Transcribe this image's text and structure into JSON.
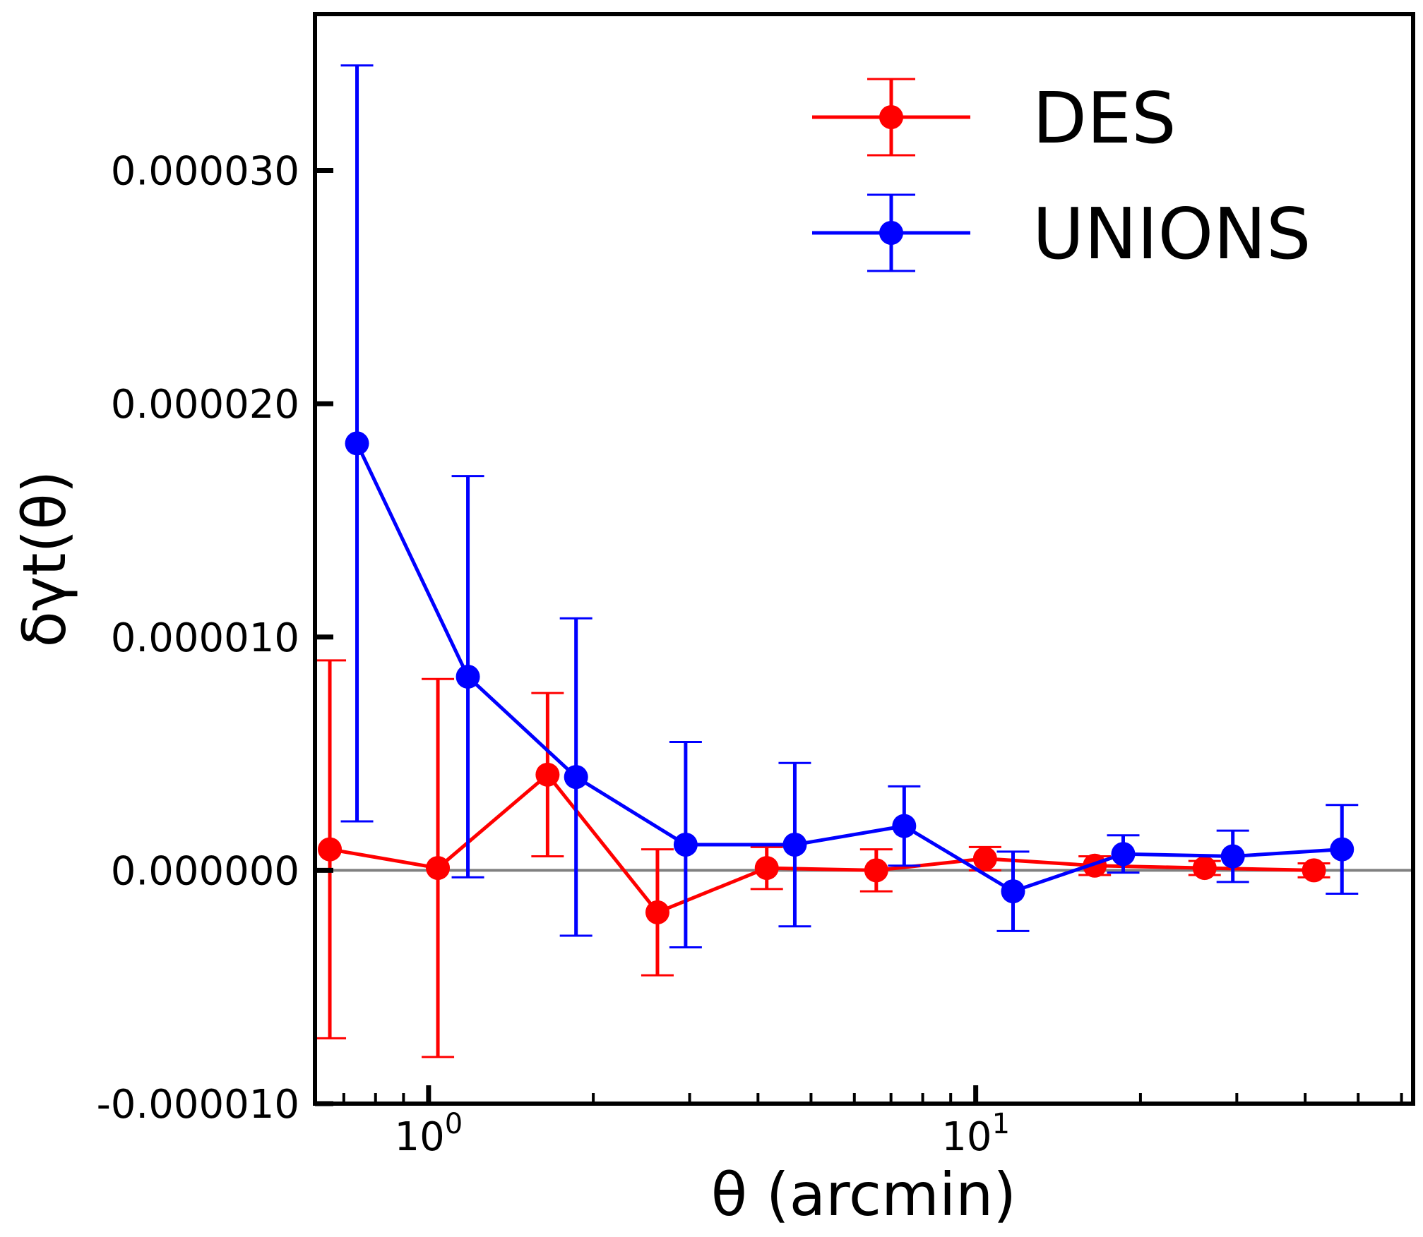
{
  "chart_data": {
    "type": "line",
    "xscale": "log",
    "xlim": [
      0.62,
      63
    ],
    "ylim": [
      -1e-05,
      3.67e-05
    ],
    "xlabel": "θ (arcmin)",
    "ylabel": "δγt(θ)",
    "title": "",
    "grid": false,
    "legend_position": "top-right",
    "y_ticks": [
      -1e-05,
      0,
      1e-05,
      2e-05,
      3e-05
    ],
    "y_tick_labels": [
      "-0.000010",
      "0.000000",
      "0.000010",
      "0.000020",
      "0.000030"
    ],
    "x_ticks": [
      1,
      10
    ],
    "x_tick_labels": [
      {
        "base": "10",
        "exp": "0"
      },
      {
        "base": "10",
        "exp": "1"
      }
    ],
    "reference_line": {
      "y": 0,
      "color": "#808080"
    },
    "series": [
      {
        "name": "DES",
        "color": "#ff0000",
        "x": [
          0.66,
          1.04,
          1.65,
          2.62,
          4.15,
          6.58,
          10.4,
          16.5,
          26.2,
          41.5
        ],
        "y": [
          9e-07,
          1e-07,
          4.1e-06,
          -1.8e-06,
          1e-07,
          0.0,
          5e-07,
          2e-07,
          1e-07,
          0.0
        ],
        "yerr": [
          8.1e-06,
          8.1e-06,
          3.5e-06,
          2.7e-06,
          9e-07,
          9e-07,
          5e-07,
          4e-07,
          3e-07,
          3e-07
        ]
      },
      {
        "name": "UNIONS",
        "color": "#0000ff",
        "x": [
          0.74,
          1.18,
          1.86,
          2.95,
          4.67,
          7.4,
          11.7,
          18.6,
          29.5,
          46.7
        ],
        "y": [
          1.83e-05,
          8.3e-06,
          4e-06,
          1.1e-06,
          1.1e-06,
          1.9e-06,
          -9e-07,
          7e-07,
          6e-07,
          9e-07
        ],
        "yerr": [
          1.62e-05,
          8.6e-06,
          6.8e-06,
          4.4e-06,
          3.5e-06,
          1.7e-06,
          1.7e-06,
          8e-07,
          1.1e-06,
          1.9e-06
        ]
      }
    ]
  }
}
